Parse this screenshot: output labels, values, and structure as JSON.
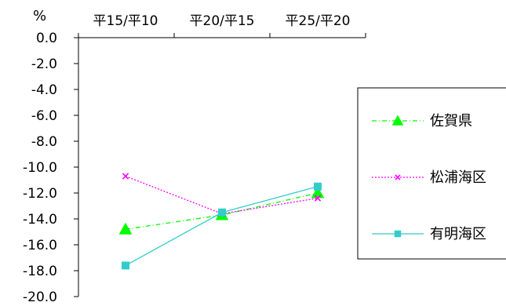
{
  "chart_data": {
    "type": "line",
    "unit_label": "%",
    "categories": [
      "平15/平10",
      "平20/平15",
      "平25/平20"
    ],
    "y_ticks": [
      "0.0",
      "-2.0",
      "-4.0",
      "-6.0",
      "-8.0",
      "-10.0",
      "-12.0",
      "-14.0",
      "-16.0",
      "-18.0",
      "-20.0"
    ],
    "ylim": [
      -20,
      0
    ],
    "x_axis_position": "top",
    "grid": false,
    "legend_position": "right",
    "series": [
      {
        "name": "佐賀県",
        "values": [
          -14.8,
          -13.7,
          -12.0
        ],
        "color": "#00ff00",
        "marker": "triangle",
        "line_style": "dash-dot"
      },
      {
        "name": "松浦海区",
        "values": [
          -10.7,
          -13.6,
          -12.4
        ],
        "color": "#ff00ff",
        "marker": "x",
        "line_style": "dotted"
      },
      {
        "name": "有明海区",
        "values": [
          -17.6,
          -13.5,
          -11.5
        ],
        "color": "#33cccc",
        "marker": "square",
        "line_style": "solid"
      }
    ]
  }
}
